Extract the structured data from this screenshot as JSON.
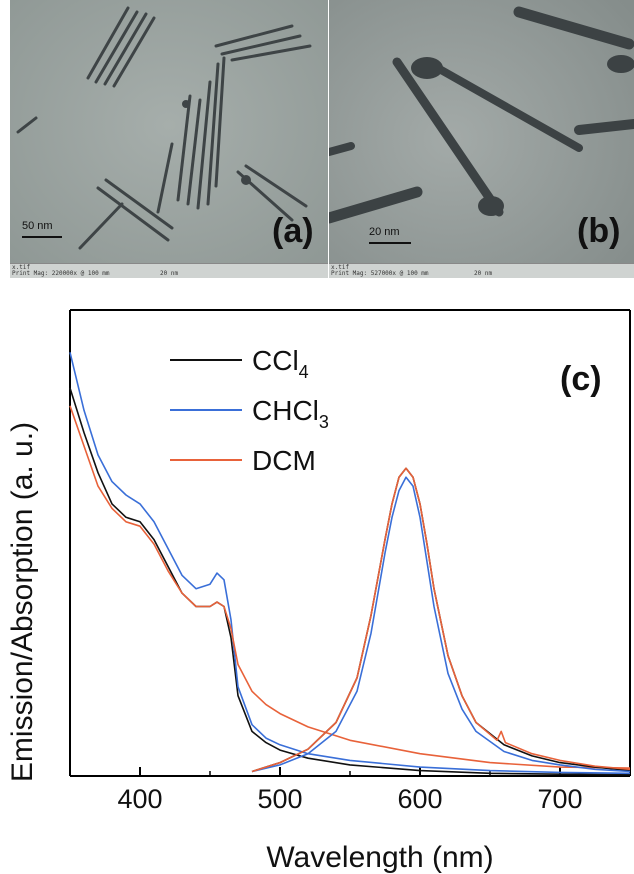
{
  "panels": {
    "a": {
      "label": "(a)",
      "scale_text": "50 nm",
      "info_line1": "x.tif",
      "info_line2": "Print Mag: 220000x @ 100 mm",
      "info_bar_text": "20 nm"
    },
    "b": {
      "label": "(b)",
      "scale_text": "20 nm",
      "info_line1": "x.tif",
      "info_line2": "Print Mag: 527000x @ 100 mm",
      "info_bar_text": "20 nm"
    }
  },
  "chart_data": {
    "type": "line",
    "panel_label": "(c)",
    "xlabel": "Wavelength (nm)",
    "ylabel": "Emission/Absorption (a. u.)",
    "xlim": [
      350,
      750
    ],
    "ylim": [
      0,
      1
    ],
    "xticks": [
      400,
      500,
      600,
      700
    ],
    "grid": false,
    "legend_position": "top-left",
    "legend": [
      {
        "name": "CCl",
        "sub": "4",
        "color": "#111111"
      },
      {
        "name": "CHCl",
        "sub": "3",
        "color": "#3a6fd8"
      },
      {
        "name": "DCM",
        "sub": "",
        "color": "#e8623a"
      }
    ],
    "series": [
      {
        "name": "CCl4 absorption",
        "color": "#111111",
        "x": [
          350,
          360,
          370,
          380,
          390,
          400,
          410,
          420,
          430,
          440,
          450,
          455,
          460,
          465,
          470,
          480,
          490,
          500,
          520,
          550,
          600,
          650,
          700,
          750
        ],
        "y": [
          0.87,
          0.77,
          0.68,
          0.61,
          0.58,
          0.57,
          0.53,
          0.47,
          0.41,
          0.38,
          0.38,
          0.39,
          0.38,
          0.31,
          0.18,
          0.1,
          0.075,
          0.058,
          0.04,
          0.025,
          0.012,
          0.006,
          0.004,
          0.003
        ]
      },
      {
        "name": "CHCl3 absorption",
        "color": "#3a6fd8",
        "x": [
          350,
          360,
          370,
          380,
          390,
          400,
          410,
          420,
          430,
          440,
          450,
          455,
          460,
          465,
          470,
          480,
          490,
          500,
          520,
          550,
          600,
          650,
          700,
          750
        ],
        "y": [
          0.95,
          0.82,
          0.72,
          0.66,
          0.63,
          0.61,
          0.57,
          0.51,
          0.45,
          0.42,
          0.43,
          0.455,
          0.44,
          0.35,
          0.2,
          0.115,
          0.085,
          0.07,
          0.05,
          0.035,
          0.02,
          0.012,
          0.008,
          0.006
        ]
      },
      {
        "name": "DCM absorption",
        "color": "#e8623a",
        "x": [
          350,
          360,
          370,
          380,
          390,
          400,
          410,
          420,
          430,
          440,
          450,
          455,
          460,
          465,
          470,
          480,
          490,
          500,
          520,
          550,
          600,
          650,
          700,
          750
        ],
        "y": [
          0.83,
          0.74,
          0.65,
          0.6,
          0.57,
          0.56,
          0.52,
          0.46,
          0.41,
          0.38,
          0.38,
          0.39,
          0.38,
          0.33,
          0.25,
          0.19,
          0.16,
          0.14,
          0.11,
          0.08,
          0.05,
          0.03,
          0.02,
          0.018
        ]
      },
      {
        "name": "CCl4 emission",
        "color": "#111111",
        "x": [
          480,
          500,
          520,
          540,
          555,
          565,
          575,
          580,
          585,
          590,
          595,
          600,
          605,
          610,
          620,
          630,
          640,
          660,
          680,
          700,
          725,
          750
        ],
        "y": [
          0.01,
          0.03,
          0.06,
          0.12,
          0.22,
          0.36,
          0.53,
          0.61,
          0.67,
          0.69,
          0.67,
          0.61,
          0.52,
          0.42,
          0.27,
          0.18,
          0.12,
          0.07,
          0.045,
          0.03,
          0.02,
          0.012
        ]
      },
      {
        "name": "CHCl3 emission",
        "color": "#3a6fd8",
        "x": [
          480,
          500,
          520,
          540,
          555,
          565,
          575,
          580,
          585,
          590,
          595,
          600,
          605,
          610,
          620,
          630,
          640,
          660,
          680,
          700,
          725,
          750
        ],
        "y": [
          0.01,
          0.025,
          0.05,
          0.1,
          0.19,
          0.32,
          0.5,
          0.58,
          0.64,
          0.67,
          0.65,
          0.58,
          0.48,
          0.38,
          0.23,
          0.15,
          0.1,
          0.055,
          0.035,
          0.025,
          0.015,
          0.01
        ]
      },
      {
        "name": "DCM emission",
        "color": "#e8623a",
        "x": [
          480,
          500,
          520,
          540,
          555,
          565,
          575,
          580,
          585,
          590,
          595,
          600,
          605,
          610,
          620,
          630,
          640,
          655,
          658,
          661,
          680,
          700,
          725,
          750
        ],
        "y": [
          0.01,
          0.03,
          0.06,
          0.12,
          0.22,
          0.36,
          0.53,
          0.61,
          0.67,
          0.69,
          0.67,
          0.61,
          0.52,
          0.42,
          0.27,
          0.18,
          0.12,
          0.08,
          0.1,
          0.075,
          0.05,
          0.035,
          0.022,
          0.015
        ]
      }
    ]
  }
}
